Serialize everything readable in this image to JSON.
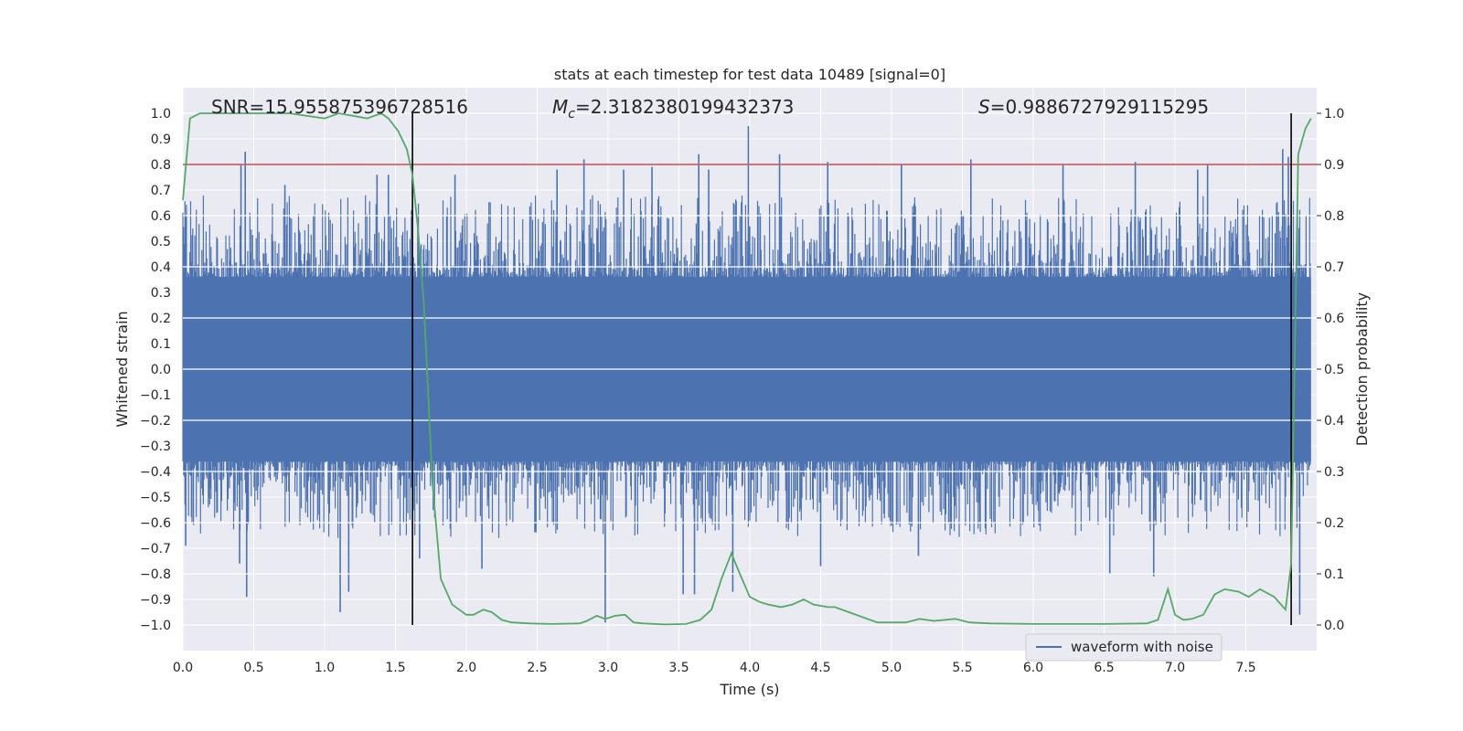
{
  "chart_data": {
    "type": "line",
    "title": "stats at each timestep for test data 10489 [signal=0]",
    "xlabel": "Time (s)",
    "ylabel": "Whitened strain",
    "y2label": "Detection probability",
    "xlim": [
      0.0,
      8.0
    ],
    "ylim": [
      -1.1,
      1.1
    ],
    "y2lim": [
      -0.05,
      1.05
    ],
    "x_ticks": [
      "0.0",
      "0.5",
      "1.0",
      "1.5",
      "2.0",
      "2.5",
      "3.0",
      "3.5",
      "4.0",
      "4.5",
      "5.0",
      "5.5",
      "6.0",
      "6.5",
      "7.0",
      "7.5"
    ],
    "y_ticks": [
      "1.0",
      "0.9",
      "0.8",
      "0.7",
      "0.6",
      "0.5",
      "0.4",
      "0.3",
      "0.2",
      "0.1",
      "0.0",
      "-0.1",
      "-0.2",
      "-0.3",
      "-0.4",
      "-0.5",
      "-0.6",
      "-0.7",
      "-0.8",
      "-0.9",
      "-1.0"
    ],
    "y2_ticks": [
      "1.0",
      "0.9",
      "0.8",
      "0.7",
      "0.6",
      "0.5",
      "0.4",
      "0.3",
      "0.2",
      "0.1",
      "0.0"
    ],
    "annotations": {
      "snr": "SNR=15.955875396728516",
      "mc_symbol": "M",
      "mc_sub": "c",
      "mc_value": "=2.3182380199432373",
      "s_symbol": "S",
      "s_value": "=0.9886727929115295"
    },
    "threshold": 0.9,
    "vlines": [
      1.62,
      7.82
    ],
    "legend": {
      "label": "waveform with noise",
      "position": "lower-right"
    },
    "grid": true,
    "colors": {
      "waveform": "#4c72b0",
      "probability": "#55a868",
      "threshold": "#c44e52",
      "vline": "#000000",
      "background": "#eaeaf2",
      "grid": "#ffffff"
    },
    "series": [
      {
        "name": "waveform with noise",
        "type": "noise-envelope",
        "envelope_core": 0.36,
        "peaks_positive": [
          {
            "x": 0.44,
            "y": 0.85
          },
          {
            "x": 0.41,
            "y": 0.8
          },
          {
            "x": 0.72,
            "y": 0.72
          },
          {
            "x": 1.37,
            "y": 0.76
          },
          {
            "x": 1.45,
            "y": 0.76
          },
          {
            "x": 1.92,
            "y": 0.76
          },
          {
            "x": 2.64,
            "y": 0.78
          },
          {
            "x": 2.83,
            "y": 0.82
          },
          {
            "x": 3.11,
            "y": 0.78
          },
          {
            "x": 3.31,
            "y": 0.79
          },
          {
            "x": 3.64,
            "y": 0.84
          },
          {
            "x": 3.71,
            "y": 0.78
          },
          {
            "x": 3.99,
            "y": 0.95
          },
          {
            "x": 4.21,
            "y": 0.84
          },
          {
            "x": 4.55,
            "y": 0.81
          },
          {
            "x": 5.07,
            "y": 0.8
          },
          {
            "x": 5.56,
            "y": 0.82
          },
          {
            "x": 6.21,
            "y": 0.8
          },
          {
            "x": 6.72,
            "y": 0.81
          },
          {
            "x": 7.16,
            "y": 0.78
          },
          {
            "x": 7.23,
            "y": 0.8
          },
          {
            "x": 7.76,
            "y": 0.86
          },
          {
            "x": 7.8,
            "y": 0.83
          }
        ],
        "peaks_negative": [
          {
            "x": 0.02,
            "y": -0.69
          },
          {
            "x": 0.4,
            "y": -0.76
          },
          {
            "x": 0.45,
            "y": -0.89
          },
          {
            "x": 1.11,
            "y": -0.95
          },
          {
            "x": 1.17,
            "y": -0.87
          },
          {
            "x": 1.67,
            "y": -0.74
          },
          {
            "x": 2.11,
            "y": -0.78
          },
          {
            "x": 2.98,
            "y": -0.99
          },
          {
            "x": 3.53,
            "y": -0.88
          },
          {
            "x": 3.61,
            "y": -0.88
          },
          {
            "x": 3.88,
            "y": -0.87
          },
          {
            "x": 4.5,
            "y": -0.77
          },
          {
            "x": 5.19,
            "y": -0.73
          },
          {
            "x": 6.54,
            "y": -0.8
          },
          {
            "x": 6.85,
            "y": -0.81
          },
          {
            "x": 7.88,
            "y": -0.96
          }
        ]
      },
      {
        "name": "",
        "axis": "right",
        "x": [
          0.0,
          0.05,
          0.12,
          0.25,
          0.5,
          0.75,
          1.0,
          1.1,
          1.2,
          1.3,
          1.4,
          1.45,
          1.52,
          1.58,
          1.62,
          1.66,
          1.7,
          1.76,
          1.82,
          1.9,
          2.0,
          2.05,
          2.12,
          2.18,
          2.25,
          2.32,
          2.45,
          2.6,
          2.8,
          2.85,
          2.92,
          2.98,
          3.05,
          3.12,
          3.18,
          3.25,
          3.4,
          3.55,
          3.65,
          3.73,
          3.8,
          3.87,
          3.93,
          4.0,
          4.07,
          4.13,
          4.22,
          4.3,
          4.38,
          4.45,
          4.55,
          4.6,
          4.7,
          4.9,
          5.1,
          5.2,
          5.3,
          5.45,
          5.55,
          5.7,
          6.0,
          6.5,
          6.8,
          6.88,
          6.95,
          7.0,
          7.06,
          7.12,
          7.2,
          7.28,
          7.35,
          7.45,
          7.52,
          7.6,
          7.7,
          7.78,
          7.82,
          7.87,
          7.92,
          7.96
        ],
        "y": [
          0.83,
          0.99,
          1.0,
          1.0,
          1.0,
          1.0,
          0.99,
          1.0,
          0.995,
          0.99,
          1.0,
          0.99,
          0.965,
          0.93,
          0.88,
          0.77,
          0.63,
          0.28,
          0.09,
          0.04,
          0.02,
          0.02,
          0.03,
          0.025,
          0.01,
          0.005,
          0.003,
          0.002,
          0.003,
          0.008,
          0.018,
          0.012,
          0.018,
          0.02,
          0.005,
          0.003,
          0.001,
          0.002,
          0.01,
          0.03,
          0.09,
          0.14,
          0.1,
          0.055,
          0.045,
          0.04,
          0.035,
          0.04,
          0.05,
          0.04,
          0.035,
          0.035,
          0.025,
          0.005,
          0.005,
          0.012,
          0.008,
          0.012,
          0.005,
          0.003,
          0.002,
          0.002,
          0.003,
          0.01,
          0.07,
          0.02,
          0.01,
          0.012,
          0.02,
          0.06,
          0.07,
          0.065,
          0.055,
          0.07,
          0.055,
          0.03,
          0.12,
          0.92,
          0.97,
          0.99
        ]
      }
    ]
  }
}
